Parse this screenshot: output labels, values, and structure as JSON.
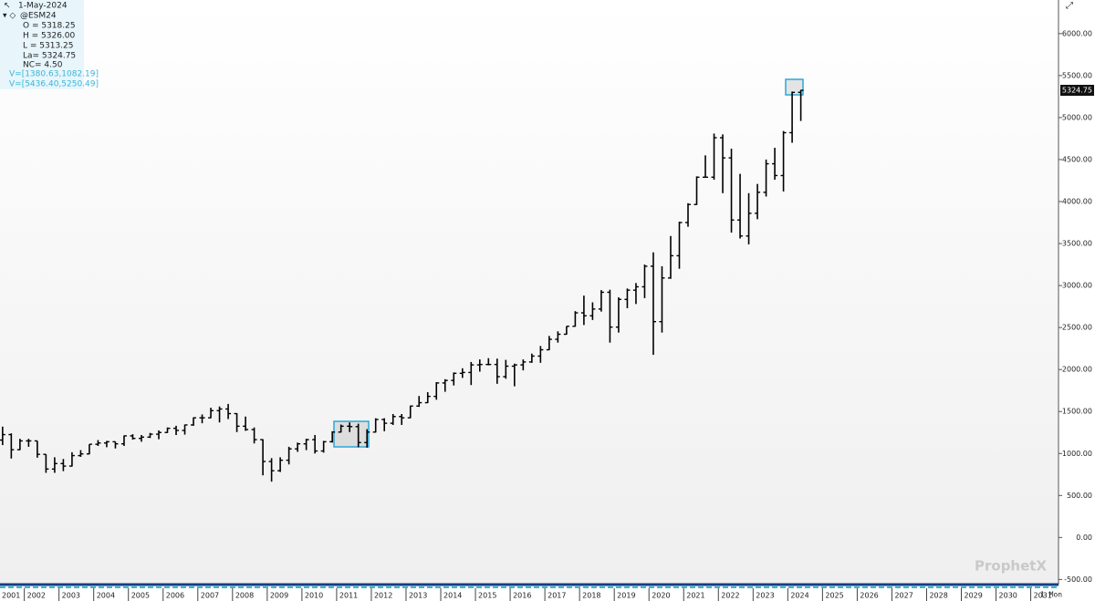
{
  "chart_data": {
    "type": "ohlc",
    "xlim": [
      2001.3,
      2031.8
    ],
    "xticks": [
      2001,
      2002,
      2003,
      2004,
      2005,
      2006,
      2007,
      2008,
      2009,
      2010,
      2011,
      2012,
      2013,
      2014,
      2015,
      2016,
      2017,
      2018,
      2019,
      2020,
      2021,
      2022,
      2023,
      2024,
      2025,
      2026,
      2027,
      2028,
      2029,
      2030,
      2031
    ],
    "ylim": [
      -550,
      6400
    ],
    "yticks": [
      {
        "value": -500,
        "label": "-500.00"
      },
      {
        "value": 0,
        "label": "0.00"
      },
      {
        "value": 500,
        "label": "500.00"
      },
      {
        "value": 1000,
        "label": "1000.00"
      },
      {
        "value": 1500,
        "label": "1500.00"
      },
      {
        "value": 2000,
        "label": "2000.00"
      },
      {
        "value": 2500,
        "label": "2500.00"
      },
      {
        "value": 3000,
        "label": "3000.00"
      },
      {
        "value": 3500,
        "label": "3500.00"
      },
      {
        "value": 4000,
        "label": "4000.00"
      },
      {
        "value": 4500,
        "label": "4500.00"
      },
      {
        "value": 5000,
        "label": "5000.00"
      },
      {
        "value": 5500,
        "label": "5500.00"
      },
      {
        "value": 6000,
        "label": "6000.00"
      }
    ],
    "color": "#000000",
    "last_price": {
      "value": 5324.75,
      "label": "5324.75"
    },
    "period_label": "1 Mon",
    "watermark": "ProphetX",
    "x": [
      2001.375,
      2001.625,
      2001.875,
      2002.125,
      2002.375,
      2002.625,
      2002.875,
      2003.125,
      2003.375,
      2003.625,
      2003.875,
      2004.125,
      2004.375,
      2004.625,
      2004.875,
      2005.125,
      2005.375,
      2005.625,
      2005.875,
      2006.125,
      2006.375,
      2006.625,
      2006.875,
      2007.125,
      2007.375,
      2007.625,
      2007.875,
      2008.125,
      2008.375,
      2008.625,
      2008.875,
      2009.125,
      2009.375,
      2009.625,
      2009.875,
      2010.125,
      2010.375,
      2010.625,
      2010.875,
      2011.125,
      2011.375,
      2011.625,
      2011.875,
      2012.125,
      2012.375,
      2012.625,
      2012.875,
      2013.125,
      2013.375,
      2013.625,
      2013.875,
      2014.125,
      2014.375,
      2014.625,
      2014.875,
      2015.125,
      2015.375,
      2015.625,
      2015.875,
      2016.125,
      2016.375,
      2016.625,
      2016.875,
      2017.125,
      2017.375,
      2017.625,
      2017.875,
      2018.125,
      2018.375,
      2018.625,
      2018.875,
      2019.125,
      2019.375,
      2019.625,
      2019.875,
      2020.125,
      2020.375,
      2020.625,
      2020.875,
      2021.125,
      2021.375,
      2021.625,
      2021.875,
      2022.125,
      2022.375,
      2022.625,
      2022.875,
      2023.125,
      2023.375,
      2023.625,
      2023.875,
      2024.125,
      2024.375
    ],
    "open": [
      1160,
      1225,
      1045,
      1150,
      1150,
      990,
      815,
      880,
      850,
      975,
      995,
      1110,
      1125,
      1140,
      1115,
      1210,
      1180,
      1195,
      1230,
      1250,
      1300,
      1275,
      1340,
      1425,
      1425,
      1510,
      1530,
      1475,
      1325,
      1285,
      1165,
      905,
      795,
      920,
      1055,
      1115,
      1165,
      1030,
      1140,
      1255,
      1325,
      1320,
      1130,
      1255,
      1405,
      1360,
      1440,
      1425,
      1565,
      1605,
      1680,
      1840,
      1870,
      1955,
      1965,
      2055,
      2060,
      2060,
      1915,
      2040,
      2055,
      2090,
      2160,
      2235,
      2360,
      2420,
      2515,
      2675,
      2640,
      2720,
      2920,
      2505,
      2835,
      2945,
      2985,
      3230,
      2570,
      3090,
      3355,
      3750,
      3965,
      4290,
      4290,
      4760,
      4520,
      3780,
      3590,
      3860,
      4110,
      4450,
      4310,
      4820,
      5300
    ],
    "high": [
      1320,
      1240,
      1175,
      1175,
      1150,
      990,
      955,
      935,
      1015,
      1040,
      1110,
      1160,
      1150,
      1140,
      1215,
      1230,
      1220,
      1245,
      1275,
      1310,
      1330,
      1345,
      1430,
      1465,
      1545,
      1560,
      1590,
      1480,
      1440,
      1310,
      1170,
      945,
      955,
      1080,
      1130,
      1175,
      1220,
      1150,
      1265,
      1345,
      1370,
      1355,
      1290,
      1420,
      1420,
      1470,
      1470,
      1570,
      1685,
      1730,
      1850,
      1885,
      1965,
      2015,
      2090,
      2120,
      2135,
      2130,
      2115,
      2070,
      2120,
      2190,
      2280,
      2400,
      2455,
      2515,
      2695,
      2880,
      2800,
      2945,
      2950,
      2860,
      2965,
      3030,
      3250,
      3395,
      3230,
      3590,
      3760,
      3980,
      4300,
      4550,
      4810,
      4800,
      4630,
      4330,
      4100,
      4210,
      4500,
      4640,
      4840,
      5310,
      5330
    ],
    "low": [
      1100,
      940,
      1040,
      1080,
      950,
      770,
      770,
      790,
      845,
      960,
      990,
      1090,
      1075,
      1060,
      1090,
      1165,
      1140,
      1185,
      1170,
      1245,
      1220,
      1225,
      1330,
      1360,
      1420,
      1370,
      1410,
      1255,
      1270,
      1120,
      740,
      665,
      780,
      870,
      1020,
      1040,
      1000,
      1010,
      1130,
      1250,
      1255,
      1075,
      1070,
      1250,
      1265,
      1340,
      1340,
      1420,
      1555,
      1600,
      1640,
      1735,
      1810,
      1900,
      1815,
      1975,
      2050,
      1830,
      1890,
      1800,
      1990,
      2080,
      2080,
      2230,
      2320,
      2415,
      2510,
      2530,
      2590,
      2690,
      2320,
      2440,
      2730,
      2780,
      2850,
      2175,
      2440,
      3080,
      3200,
      3700,
      3960,
      4290,
      4260,
      4100,
      3630,
      3560,
      3490,
      3790,
      4060,
      4260,
      4120,
      4700,
      4960
    ],
    "close": [
      1225,
      1045,
      1150,
      1150,
      990,
      815,
      880,
      850,
      975,
      995,
      1110,
      1125,
      1140,
      1115,
      1210,
      1180,
      1195,
      1230,
      1250,
      1300,
      1275,
      1340,
      1425,
      1425,
      1510,
      1530,
      1475,
      1325,
      1285,
      1165,
      905,
      795,
      920,
      1055,
      1115,
      1165,
      1030,
      1140,
      1255,
      1325,
      1320,
      1130,
      1255,
      1405,
      1360,
      1440,
      1425,
      1565,
      1605,
      1680,
      1840,
      1870,
      1955,
      1965,
      2055,
      2060,
      2060,
      1915,
      2040,
      2055,
      2090,
      2160,
      2235,
      2360,
      2420,
      2515,
      2675,
      2640,
      2720,
      2920,
      2505,
      2835,
      2945,
      2985,
      3230,
      2570,
      3090,
      3355,
      3750,
      3965,
      4290,
      4290,
      4760,
      4520,
      3780,
      3590,
      3860,
      4110,
      4450,
      4310,
      4820,
      5300,
      5324.75
    ]
  },
  "panel": {
    "date": "1-May-2024",
    "symbol": "@ESM24",
    "open": "O = 5318.25",
    "high": "H = 5326.00",
    "low": "L = 5313.25",
    "last": "La= 5324.75",
    "net_change": "NC= 4.50",
    "box1": "V=[1380.63,1082.19]",
    "box2": "V=[5436.40,5250.49]"
  }
}
